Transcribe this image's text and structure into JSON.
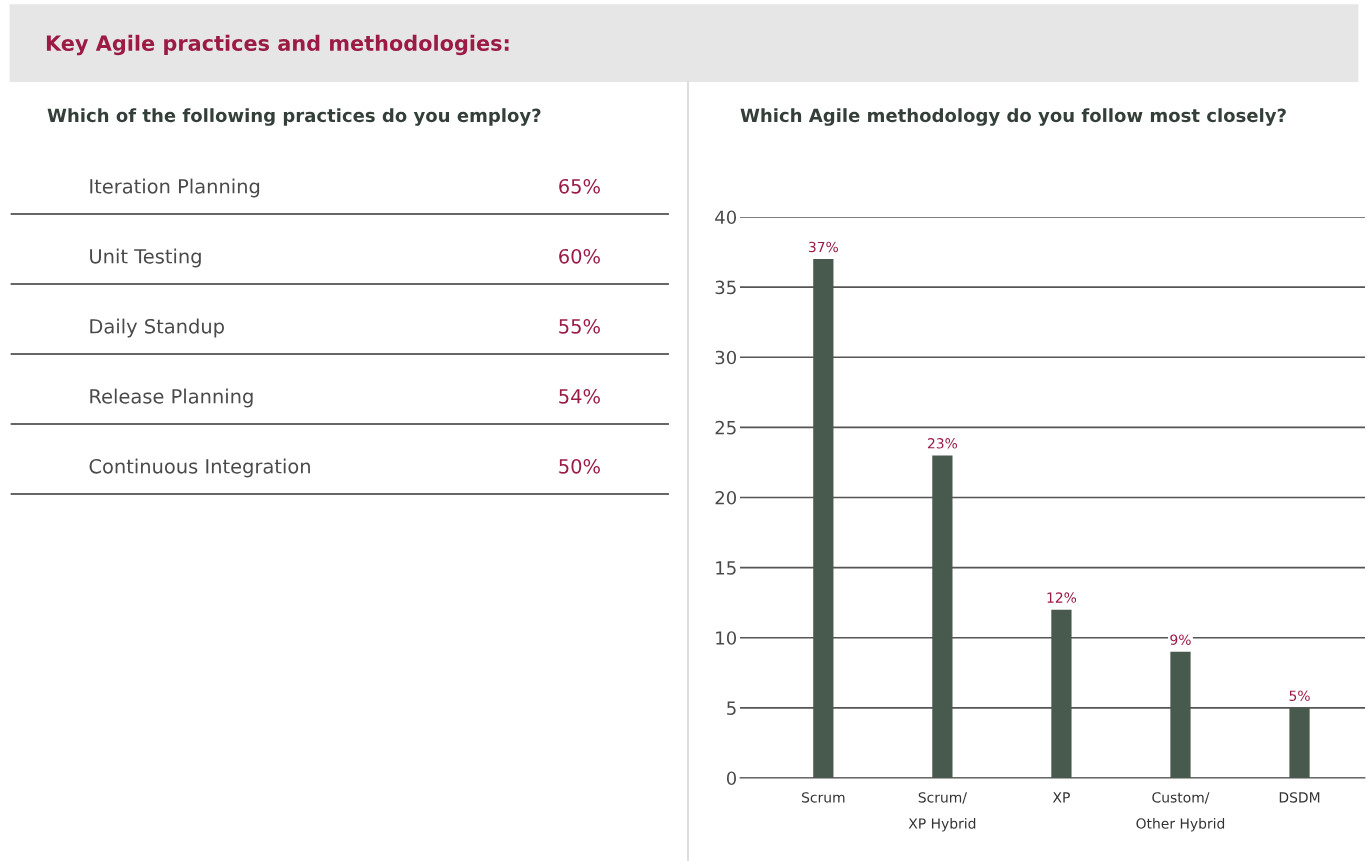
{
  "chart_data": [
    {
      "type": "other",
      "title": "Key Agile practices and methodologies:",
      "subtitle": "Which of the following practices do you employ?",
      "categories": [
        "Iteration Planning",
        "Unit Testing",
        "Daily Standup",
        "Release Planning",
        "Continuous Integration"
      ],
      "values": [
        65,
        60,
        55,
        54,
        50
      ],
      "value_labels": [
        "65%",
        "60%",
        "55%",
        "54%",
        "50%"
      ]
    },
    {
      "type": "bar",
      "title": "Which Agile methodology do you follow most closely?",
      "categories": [
        "Scrum",
        "Scrum/\nXP Hybrid",
        "XP",
        "Custom/\nOther Hybrid",
        "DSDM"
      ],
      "values": [
        37,
        23,
        12,
        9,
        5
      ],
      "value_labels": [
        "37%",
        "23%",
        "12%",
        "9%",
        "5%"
      ],
      "color": "#48594e",
      "ylim": [
        0,
        40
      ],
      "yticks": [
        0,
        5,
        10,
        15,
        20,
        25,
        30,
        35,
        40
      ],
      "grid": "y"
    }
  ]
}
